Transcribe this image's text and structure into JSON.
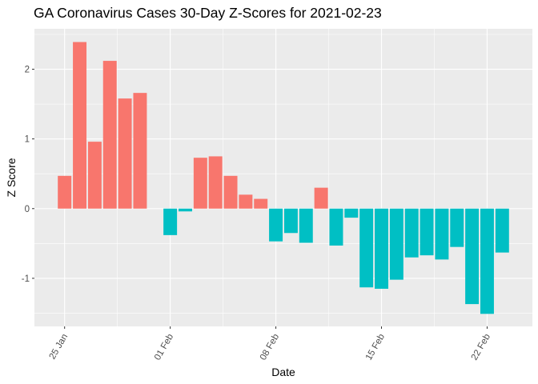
{
  "chart_data": {
    "type": "bar",
    "title": "GA Coronavirus Cases 30-Day Z-Scores for 2021-02-23",
    "xlabel": "Date",
    "ylabel": "Z Score",
    "ylim": [
      -1.69,
      2.58
    ],
    "y_ticks": [
      -1,
      0,
      1,
      2
    ],
    "x_ticks": [
      {
        "label": "25 Jan",
        "date": "2021-01-25"
      },
      {
        "label": "01 Feb",
        "date": "2021-02-01"
      },
      {
        "label": "08 Feb",
        "date": "2021-02-08"
      },
      {
        "label": "15 Feb",
        "date": "2021-02-15"
      },
      {
        "label": "22 Feb",
        "date": "2021-02-22"
      }
    ],
    "x_range": [
      "2021-01-23",
      "2021-02-25"
    ],
    "colors": {
      "positive": "#F8766D",
      "negative": "#00BFC4",
      "panel": "#EBEBEB",
      "grid": "#FFFFFF"
    },
    "legend": "none",
    "grid": true,
    "dates": [
      "2021-01-25",
      "2021-01-26",
      "2021-01-27",
      "2021-01-28",
      "2021-01-29",
      "2021-01-30",
      "2021-01-31",
      "2021-02-01",
      "2021-02-02",
      "2021-02-03",
      "2021-02-04",
      "2021-02-05",
      "2021-02-06",
      "2021-02-07",
      "2021-02-08",
      "2021-02-09",
      "2021-02-10",
      "2021-02-11",
      "2021-02-12",
      "2021-02-13",
      "2021-02-14",
      "2021-02-15",
      "2021-02-16",
      "2021-02-17",
      "2021-02-18",
      "2021-02-19",
      "2021-02-20",
      "2021-02-21",
      "2021-02-22",
      "2021-02-23"
    ],
    "values": [
      0.47,
      2.39,
      0.96,
      2.12,
      1.58,
      1.66,
      0,
      -0.38,
      -0.04,
      0.73,
      0.75,
      0.47,
      0.2,
      0.14,
      -0.47,
      -0.35,
      -0.49,
      0.3,
      -0.53,
      -0.13,
      -1.13,
      -1.15,
      -1.02,
      -0.7,
      -0.67,
      -0.73,
      -0.55,
      -1.37,
      -1.51,
      -0.63
    ]
  }
}
